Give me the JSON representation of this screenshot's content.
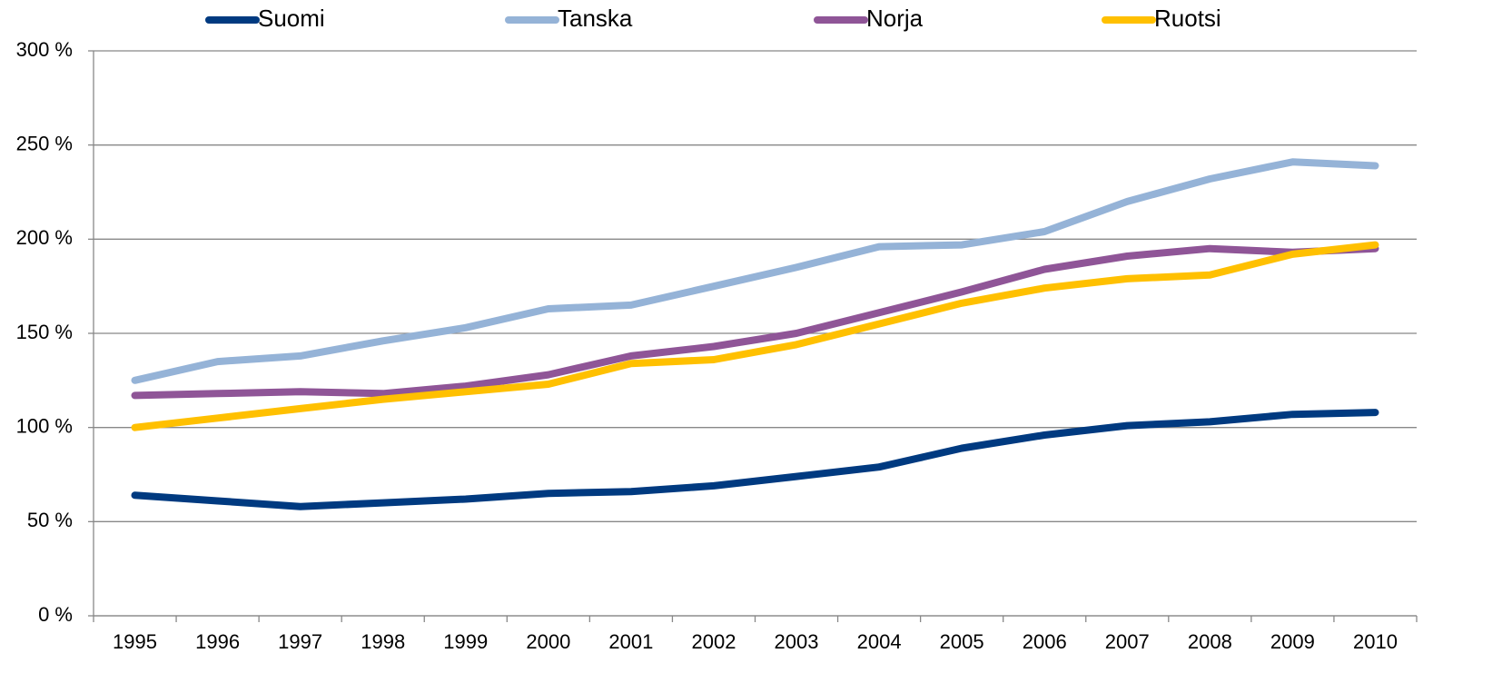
{
  "chart_data": {
    "type": "line",
    "categories": [
      "1995",
      "1996",
      "1997",
      "1998",
      "1999",
      "2000",
      "2001",
      "2002",
      "2003",
      "2004",
      "2005",
      "2006",
      "2007",
      "2008",
      "2009",
      "2010"
    ],
    "series": [
      {
        "name": "Suomi",
        "color": "#003a80",
        "values": [
          64,
          61,
          58,
          60,
          62,
          65,
          66,
          69,
          74,
          79,
          89,
          96,
          101,
          103,
          107,
          108
        ]
      },
      {
        "name": "Tanska",
        "color": "#95b3d7",
        "values": [
          125,
          135,
          138,
          146,
          153,
          163,
          165,
          175,
          185,
          196,
          197,
          204,
          220,
          232,
          241,
          239
        ]
      },
      {
        "name": "Norja",
        "color": "#8f5597",
        "values": [
          117,
          118,
          119,
          118,
          122,
          128,
          138,
          143,
          150,
          161,
          172,
          184,
          191,
          195,
          193,
          195
        ]
      },
      {
        "name": "Ruotsi",
        "color": "#ffc000",
        "values": [
          100,
          105,
          110,
          115,
          119,
          123,
          134,
          136,
          144,
          155,
          166,
          174,
          179,
          181,
          192,
          197
        ]
      }
    ],
    "ylim": [
      0,
      300
    ],
    "yticks": [
      {
        "value": 0,
        "label": "0 %"
      },
      {
        "value": 50,
        "label": "50 %"
      },
      {
        "value": 100,
        "label": "100 %"
      },
      {
        "value": 150,
        "label": "150 %"
      },
      {
        "value": 200,
        "label": "200 %"
      },
      {
        "value": 250,
        "label": "250 %"
      },
      {
        "value": 300,
        "label": "300 %"
      }
    ],
    "grid": true,
    "legend": "top"
  }
}
